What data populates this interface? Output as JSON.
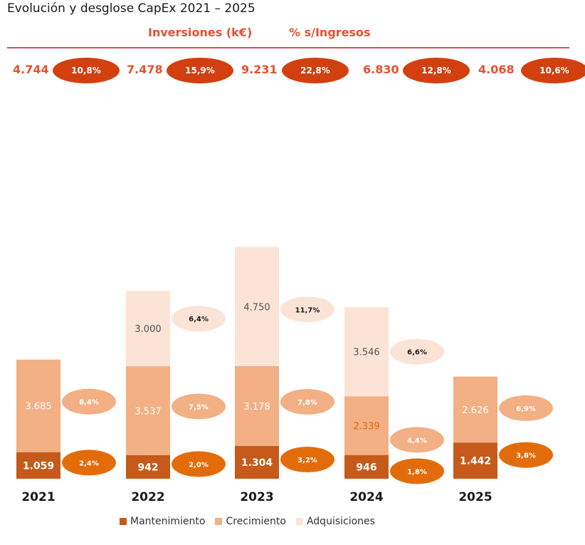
{
  "title": "Evolución y desglose CapEx 2021 – 2025",
  "headers": {
    "investments": "Inversiones (k€)",
    "pct_revenue": "% s/Ingresos"
  },
  "totals": [
    {
      "value": "4.744",
      "pct": "10,8%"
    },
    {
      "value": "7.478",
      "pct": "15,9%"
    },
    {
      "value": "9.231",
      "pct": "22,8%"
    },
    {
      "value": "6.830",
      "pct": "12,8%"
    },
    {
      "value": "4.068",
      "pct": "10,6%"
    }
  ],
  "colors": {
    "mantenimiento": "#c55a1a",
    "crecimiento": "#f2b084",
    "adquisiciones": "#fbe3d6",
    "pct_oval_dark": "#e36c0a",
    "header_accent": "#e8502e"
  },
  "chart_data": {
    "type": "bar",
    "stacked": true,
    "categories": [
      "2021",
      "2022",
      "2023",
      "2024",
      "2025"
    ],
    "series": [
      {
        "name": "Mantenimiento",
        "values": [
          1059,
          942,
          1304,
          946,
          1442
        ],
        "labels": [
          "1.059",
          "942",
          "1.304",
          "946",
          "1.442"
        ],
        "pct": [
          "2,4%",
          "2,0%",
          "3,2%",
          "1,8%",
          "3,8%"
        ]
      },
      {
        "name": "Crecimiento",
        "values": [
          3685,
          3537,
          3178,
          2339,
          2626
        ],
        "labels": [
          "3.685",
          "3.537",
          "3.178",
          "2.339",
          "2.626"
        ],
        "pct": [
          "8,4%",
          "7,5%",
          "7,8%",
          "4,4%",
          "6,9%"
        ]
      },
      {
        "name": "Adquisiciones",
        "values": [
          0,
          3000,
          4750,
          3546,
          0
        ],
        "labels": [
          "",
          "3.000",
          "4.750",
          "3.546",
          ""
        ],
        "pct": [
          "",
          "6,4%",
          "11,7%",
          "6,6%",
          ""
        ]
      }
    ],
    "legend_position": "bottom",
    "grid": false
  }
}
